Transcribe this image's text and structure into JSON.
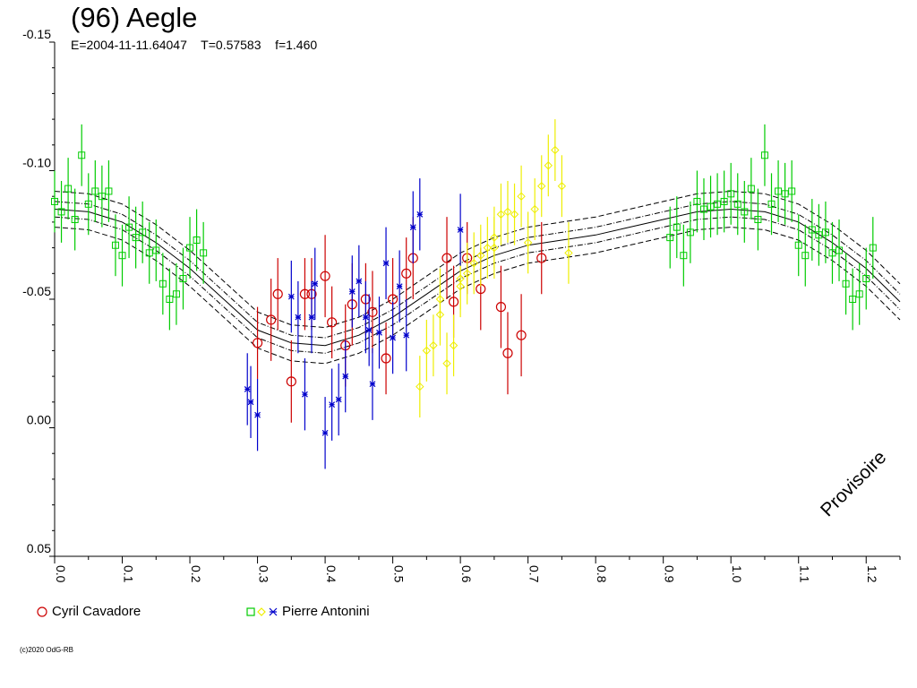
{
  "header": {
    "title": "(96) Aegle",
    "subtitle": "E=2004-11-11.64047    T=0.57583    f=1.460"
  },
  "watermark": "Provisoire",
  "copyright": "(c)2020 OdG-RB",
  "legend": [
    {
      "label": "Cyril Cavadore",
      "markers": [
        "circle"
      ],
      "colors": [
        "#cc0000"
      ]
    },
    {
      "label": "Pierre Antonini",
      "markers": [
        "square",
        "diamond",
        "star"
      ],
      "colors": [
        "#00cc00",
        "#eeee00",
        "#0000cc"
      ]
    }
  ],
  "chart_data": {
    "type": "scatter",
    "title": "(96) Aegle",
    "subtitle": "E=2004-11-11.64047    T=0.57583    f=1.460",
    "xlabel": "",
    "ylabel": "",
    "xlim": [
      0.0,
      1.25
    ],
    "ylim": [
      -0.15,
      0.05
    ],
    "y_inverted": true,
    "x_ticks": [
      "0.0",
      "0.1",
      "0.2",
      "0.3",
      "0.4",
      "0.5",
      "0.6",
      "0.7",
      "0.8",
      "0.9",
      "1.0",
      "1.1",
      "1.2"
    ],
    "y_ticks": [
      "-0.15",
      "-0.10",
      "-0.05",
      "0.00",
      "0.05"
    ],
    "grid": false,
    "legend_position": "bottom",
    "fit_curve": {
      "x": [
        0.0,
        0.05,
        0.1,
        0.15,
        0.2,
        0.25,
        0.3,
        0.35,
        0.4,
        0.45,
        0.5,
        0.55,
        0.6,
        0.65,
        0.7,
        0.75,
        0.8,
        0.85,
        0.9,
        0.95,
        1.0,
        1.05,
        1.1,
        1.15,
        1.2,
        1.25
      ],
      "y": [
        -0.085,
        -0.084,
        -0.08,
        -0.072,
        -0.062,
        -0.05,
        -0.038,
        -0.033,
        -0.032,
        -0.036,
        -0.043,
        -0.052,
        -0.061,
        -0.067,
        -0.071,
        -0.073,
        -0.075,
        -0.078,
        -0.081,
        -0.084,
        -0.085,
        -0.084,
        -0.08,
        -0.072,
        -0.062,
        -0.049
      ],
      "band_inner": 0.003,
      "band_outer": 0.007
    },
    "series": [
      {
        "name": "Cyril Cavadore",
        "marker": "circle",
        "color": "#cc0000",
        "x": [
          0.3,
          0.32,
          0.33,
          0.35,
          0.37,
          0.38,
          0.4,
          0.41,
          0.43,
          0.44,
          0.46,
          0.47,
          0.49,
          0.5,
          0.52,
          0.53,
          0.58,
          0.59,
          0.61,
          0.63,
          0.66,
          0.67,
          0.69,
          0.72
        ],
        "y": [
          -0.033,
          -0.042,
          -0.052,
          -0.018,
          -0.052,
          -0.052,
          -0.059,
          -0.041,
          -0.032,
          -0.048,
          -0.05,
          -0.045,
          -0.027,
          -0.05,
          -0.06,
          -0.066,
          -0.066,
          -0.049,
          -0.066,
          -0.054,
          -0.047,
          -0.029,
          -0.036,
          -0.066
        ],
        "err": [
          0.014,
          0.016,
          0.014,
          0.016,
          0.014,
          0.014,
          0.016,
          0.014,
          0.016,
          0.016,
          0.014,
          0.016,
          0.014,
          0.016,
          0.014,
          0.016,
          0.016,
          0.014,
          0.014,
          0.016,
          0.016,
          0.016,
          0.016,
          0.014
        ]
      },
      {
        "name": "Pierre Antonini",
        "marker": "square",
        "color": "#00cc00",
        "x": [
          0.0,
          0.01,
          0.02,
          0.03,
          0.04,
          0.05,
          0.06,
          0.07,
          0.08,
          0.09,
          0.1,
          0.11,
          0.12,
          0.13,
          0.14,
          0.15,
          0.16,
          0.17,
          0.18,
          0.19,
          0.2,
          0.21,
          0.22,
          0.91,
          0.92,
          0.93,
          0.94,
          0.95,
          0.96,
          0.97,
          0.98,
          0.99,
          1.0,
          1.01,
          1.02,
          1.03,
          1.04,
          1.05,
          1.06,
          1.07,
          1.08,
          1.09,
          1.1,
          1.11,
          1.12,
          1.13,
          1.14,
          1.15,
          1.16,
          1.17,
          1.18,
          1.19,
          1.2,
          1.21
        ],
        "y": [
          -0.088,
          -0.084,
          -0.093,
          -0.081,
          -0.106,
          -0.087,
          -0.092,
          -0.09,
          -0.092,
          -0.071,
          -0.067,
          -0.078,
          -0.074,
          -0.076,
          -0.068,
          -0.069,
          -0.056,
          -0.05,
          -0.052,
          -0.058,
          -0.07,
          -0.073,
          -0.068,
          -0.074,
          -0.078,
          -0.067,
          -0.076,
          -0.088,
          -0.085,
          -0.086,
          -0.087,
          -0.088,
          -0.091,
          -0.087,
          -0.084,
          -0.093,
          -0.081,
          -0.106,
          -0.087,
          -0.092,
          -0.091,
          -0.092,
          -0.071,
          -0.067,
          -0.077,
          -0.075,
          -0.076,
          -0.068,
          -0.069,
          -0.056,
          -0.05,
          -0.052,
          -0.058,
          -0.07
        ],
        "err": [
          0.012,
          0.012,
          0.012,
          0.012,
          0.012,
          0.012,
          0.012,
          0.012,
          0.012,
          0.012,
          0.012,
          0.012,
          0.012,
          0.012,
          0.012,
          0.012,
          0.012,
          0.012,
          0.012,
          0.012,
          0.012,
          0.012,
          0.012,
          0.012,
          0.012,
          0.012,
          0.012,
          0.012,
          0.012,
          0.012,
          0.012,
          0.012,
          0.012,
          0.012,
          0.012,
          0.012,
          0.012,
          0.012,
          0.012,
          0.012,
          0.012,
          0.012,
          0.012,
          0.012,
          0.012,
          0.012,
          0.012,
          0.012,
          0.012,
          0.012,
          0.012,
          0.012,
          0.012,
          0.012
        ]
      },
      {
        "name": "Pierre Antonini",
        "marker": "diamond",
        "color": "#eeee00",
        "x": [
          0.54,
          0.55,
          0.56,
          0.57,
          0.58,
          0.59,
          0.6,
          0.61,
          0.62,
          0.63,
          0.64,
          0.65,
          0.66,
          0.67,
          0.68,
          0.69,
          0.7,
          0.71,
          0.72,
          0.73,
          0.74,
          0.75,
          0.76,
          0.57,
          0.6,
          0.65
        ],
        "y": [
          -0.016,
          -0.03,
          -0.032,
          -0.044,
          -0.025,
          -0.032,
          -0.058,
          -0.06,
          -0.064,
          -0.067,
          -0.07,
          -0.074,
          -0.083,
          -0.084,
          -0.083,
          -0.09,
          -0.072,
          -0.085,
          -0.094,
          -0.102,
          -0.108,
          -0.094,
          -0.068,
          -0.05,
          -0.055,
          -0.07
        ],
        "err": [
          0.012,
          0.012,
          0.012,
          0.012,
          0.012,
          0.012,
          0.012,
          0.012,
          0.012,
          0.012,
          0.012,
          0.012,
          0.012,
          0.012,
          0.012,
          0.012,
          0.012,
          0.012,
          0.012,
          0.012,
          0.012,
          0.012,
          0.012,
          0.012,
          0.012,
          0.012
        ]
      },
      {
        "name": "Pierre Antonini",
        "marker": "star",
        "color": "#0000cc",
        "x": [
          0.285,
          0.29,
          0.3,
          0.35,
          0.36,
          0.37,
          0.38,
          0.385,
          0.4,
          0.41,
          0.42,
          0.43,
          0.44,
          0.45,
          0.46,
          0.465,
          0.47,
          0.48,
          0.49,
          0.5,
          0.51,
          0.52,
          0.53,
          0.54,
          0.6
        ],
        "y": [
          -0.015,
          -0.01,
          -0.005,
          -0.051,
          -0.043,
          -0.013,
          -0.043,
          -0.056,
          0.002,
          -0.009,
          -0.011,
          -0.02,
          -0.053,
          -0.057,
          -0.043,
          -0.038,
          -0.017,
          -0.037,
          -0.064,
          -0.035,
          -0.055,
          -0.036,
          -0.078,
          -0.083,
          -0.077
        ],
        "err": [
          0.014,
          0.014,
          0.014,
          0.014,
          0.014,
          0.014,
          0.014,
          0.014,
          0.014,
          0.014,
          0.014,
          0.014,
          0.014,
          0.014,
          0.014,
          0.014,
          0.014,
          0.014,
          0.014,
          0.014,
          0.014,
          0.014,
          0.014,
          0.014,
          0.014
        ]
      }
    ]
  }
}
